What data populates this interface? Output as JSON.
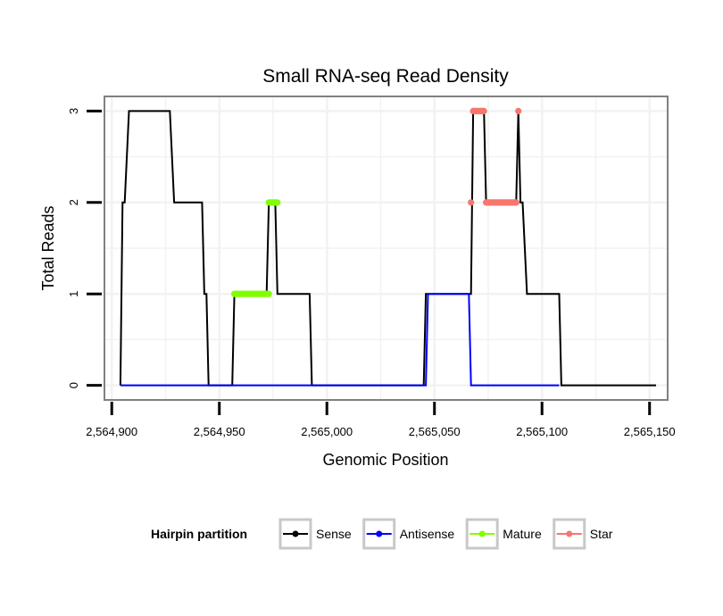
{
  "chart_data": {
    "type": "line",
    "title": "Small RNA-seq Read Density",
    "xlabel": "Genomic Position",
    "ylabel": "Total Reads",
    "xlim": [
      2564897,
      2565158
    ],
    "ylim": [
      -0.15,
      3.15
    ],
    "x_ticks": [
      {
        "value": 2564900,
        "label": "2,564,900"
      },
      {
        "value": 2564950,
        "label": "2,564,950"
      },
      {
        "value": 2565000,
        "label": "2,565,000"
      },
      {
        "value": 2565050,
        "label": "2,565,050"
      },
      {
        "value": 2565100,
        "label": "2,565,100"
      },
      {
        "value": 2565150,
        "label": "2,565,150"
      }
    ],
    "y_ticks": [
      {
        "value": 0,
        "label": "0"
      },
      {
        "value": 1,
        "label": "1"
      },
      {
        "value": 2,
        "label": "2"
      },
      {
        "value": 3,
        "label": "3"
      }
    ],
    "grid": true,
    "legend": {
      "title": "Hairpin partition",
      "position": "bottom"
    },
    "series": [
      {
        "name": "Sense",
        "color": "#000000",
        "style": "line",
        "points": [
          [
            2564904,
            0
          ],
          [
            2564905,
            2
          ],
          [
            2564906,
            2
          ],
          [
            2564908,
            3
          ],
          [
            2564927,
            3
          ],
          [
            2564929,
            2
          ],
          [
            2564942,
            2
          ],
          [
            2564943,
            1
          ],
          [
            2564944,
            1
          ],
          [
            2564945,
            0
          ],
          [
            2564956,
            0
          ],
          [
            2564957,
            1
          ],
          [
            2564972,
            1
          ],
          [
            2564973,
            2
          ],
          [
            2564976,
            2
          ],
          [
            2564977,
            1
          ],
          [
            2564992,
            1
          ],
          [
            2564993,
            0
          ],
          [
            2565045,
            0
          ],
          [
            2565046,
            1
          ],
          [
            2565067,
            1
          ],
          [
            2565068,
            3
          ],
          [
            2565073,
            3
          ],
          [
            2565074,
            2
          ],
          [
            2565088,
            2
          ],
          [
            2565089,
            3
          ],
          [
            2565090,
            2
          ],
          [
            2565091,
            2
          ],
          [
            2565093,
            1
          ],
          [
            2565108,
            1
          ],
          [
            2565109,
            0
          ],
          [
            2565153,
            0
          ]
        ]
      },
      {
        "name": "Antisense",
        "color": "#0000ff",
        "style": "line",
        "points": [
          [
            2564904,
            0
          ],
          [
            2565046,
            0
          ],
          [
            2565047,
            1
          ],
          [
            2565066,
            1
          ],
          [
            2565067,
            0
          ],
          [
            2565108,
            0
          ]
        ]
      },
      {
        "name": "Mature",
        "color": "#7fff00",
        "style": "points",
        "segments": [
          {
            "x_from": 2564957,
            "x_to": 2564973,
            "y": 1
          },
          {
            "x_from": 2564973,
            "x_to": 2564977,
            "y": 2
          }
        ]
      },
      {
        "name": "Star",
        "color": "#f8766d",
        "style": "points",
        "segments": [
          {
            "x_from": 2565067,
            "x_to": 2565067,
            "y": 2
          },
          {
            "x_from": 2565068,
            "x_to": 2565073,
            "y": 3
          },
          {
            "x_from": 2565074,
            "x_to": 2565088,
            "y": 2
          },
          {
            "x_from": 2565089,
            "x_to": 2565089,
            "y": 3
          }
        ]
      }
    ]
  }
}
